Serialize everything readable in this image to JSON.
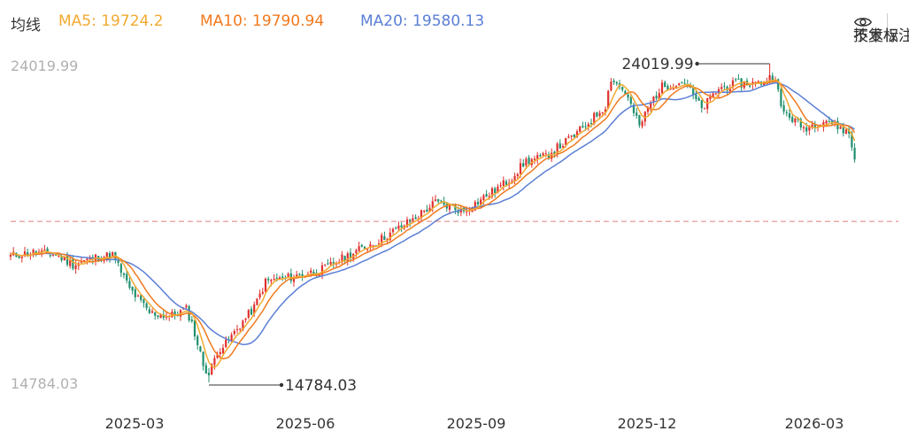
{
  "header": {
    "title": "均线",
    "ma5_text": "MA5: 19724.2",
    "ma10_text": "MA10: 19790.94",
    "ma20_text": "MA20: 19580.13",
    "indicator_label": "技术标注",
    "adjust_label": "不复权"
  },
  "colors": {
    "ma5": "#f2a930",
    "ma10": "#f07a1e",
    "ma20": "#5b7fd6",
    "up": "#e0302f",
    "down": "#1f8f6e"
  },
  "chart_data": {
    "type": "candlestick",
    "title": "均线",
    "ylim": [
      14784.03,
      24019.99
    ],
    "y_labels": [
      "24019.99",
      "14784.03"
    ],
    "high": {
      "value": 24019.99,
      "label": "24019.99"
    },
    "low": {
      "value": 14784.03,
      "label": "14784.03"
    },
    "reference_level": 19450,
    "x_ticks": [
      "2025-03",
      "2025-06",
      "2025-09",
      "2025-12",
      "2026-03"
    ],
    "series": [
      {
        "name": "MA5",
        "last": 19724.2
      },
      {
        "name": "MA10",
        "last": 19790.94
      },
      {
        "name": "MA20",
        "last": 19580.13
      }
    ],
    "anchors": [
      [
        0,
        18450
      ],
      [
        8,
        18550
      ],
      [
        16,
        18480
      ],
      [
        22,
        18200
      ],
      [
        30,
        18400
      ],
      [
        36,
        18480
      ],
      [
        42,
        17500
      ],
      [
        49,
        16800
      ],
      [
        56,
        16700
      ],
      [
        62,
        16900
      ],
      [
        64,
        16500
      ],
      [
        68,
        15300
      ],
      [
        70,
        15000
      ],
      [
        73,
        15700
      ],
      [
        76,
        15900
      ],
      [
        82,
        16550
      ],
      [
        86,
        16950
      ],
      [
        90,
        17700
      ],
      [
        100,
        17850
      ],
      [
        110,
        18050
      ],
      [
        120,
        18500
      ],
      [
        130,
        18900
      ],
      [
        142,
        19500
      ],
      [
        150,
        20000
      ],
      [
        160,
        19750
      ],
      [
        170,
        20300
      ],
      [
        176,
        20650
      ],
      [
        182,
        21200
      ],
      [
        188,
        21300
      ],
      [
        195,
        21700
      ],
      [
        200,
        22000
      ],
      [
        210,
        22800
      ],
      [
        212,
        23600
      ],
      [
        217,
        23200
      ],
      [
        222,
        22200
      ],
      [
        226,
        22900
      ],
      [
        230,
        23350
      ],
      [
        238,
        23500
      ],
      [
        244,
        22700
      ],
      [
        250,
        23300
      ],
      [
        257,
        23450
      ],
      [
        264,
        23450
      ],
      [
        270,
        23700
      ],
      [
        272,
        22700
      ],
      [
        280,
        22150
      ],
      [
        288,
        22400
      ],
      [
        296,
        22000
      ],
      [
        298,
        21250
      ]
    ]
  }
}
